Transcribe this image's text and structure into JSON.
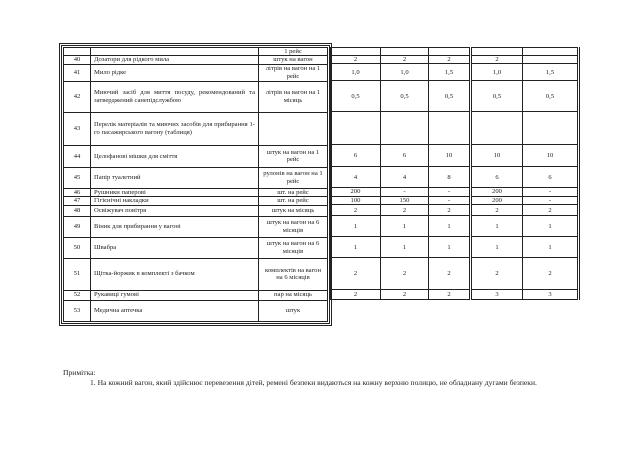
{
  "rows": [
    {
      "num": "",
      "name": "",
      "unit": "1 рейс",
      "values": [
        "",
        "",
        "",
        "",
        ""
      ]
    },
    {
      "num": "40",
      "name": "Дозатори для рідкого мила",
      "unit": "штук на вагон",
      "values": [
        "2",
        "2",
        "2",
        "2",
        ""
      ]
    },
    {
      "num": "41",
      "name": "Мило рідке",
      "unit": "літрів на вагон на 1 рейс",
      "values": [
        "1,0",
        "1,0",
        "1,5",
        "1,0",
        "1,5"
      ]
    },
    {
      "num": "42",
      "name": "Миючий засіб для миття посуду, рекомендований та затверджений санепідслужбою",
      "unit": "літрів на вагон на 1 місяць",
      "values": [
        "0,5",
        "0,5",
        "0,5",
        "0,5",
        "0,5"
      ]
    },
    {
      "num": "43",
      "name": "Перелік матеріалів та миючих засобів для прибирання 1-го пасажирського вагону (таблиця)",
      "unit": "",
      "values": [
        "",
        "",
        "",
        "",
        ""
      ]
    },
    {
      "num": "44",
      "name": "Целофанові мішки для сміття",
      "unit": "штук на вагон на 1 рейс",
      "values": [
        "6",
        "6",
        "10",
        "10",
        "10"
      ]
    },
    {
      "num": "45",
      "name": "Папір туалетний",
      "unit": "рулонів на вагон на 1 рейс",
      "values": [
        "4",
        "4",
        "8",
        "6",
        "6"
      ]
    },
    {
      "num": "46",
      "name": "Рушники паперові",
      "unit": "шт. на рейс",
      "values": [
        "200",
        "-",
        "-",
        "200",
        "-"
      ]
    },
    {
      "num": "47",
      "name": "Гігієнічні накладки",
      "unit": "шт. на рейс",
      "values": [
        "100",
        "150",
        "-",
        "200",
        "-"
      ]
    },
    {
      "num": "48",
      "name": "Освіжувач повітря",
      "unit": "штук на місяць",
      "values": [
        "2",
        "2",
        "2",
        "2",
        "2"
      ]
    },
    {
      "num": "49",
      "name": "Віник для прибирання у вагоні",
      "unit": "штук на вагон на 6 місяців",
      "values": [
        "1",
        "1",
        "1",
        "1",
        "1"
      ]
    },
    {
      "num": "50",
      "name": "Швабра",
      "unit": "штук на вагон на 6 місяців",
      "values": [
        "1",
        "1",
        "1",
        "1",
        "1"
      ]
    },
    {
      "num": "51",
      "name": "Щітка-йоржик в комплекті з бачком",
      "unit": "комплектів на вагон на 6 місяців",
      "values": [
        "2",
        "2",
        "2",
        "2",
        "2"
      ]
    },
    {
      "num": "52",
      "name": "Рукавиці гумові",
      "unit": "пар на місяць",
      "values": [
        "2",
        "2",
        "2",
        "3",
        "3"
      ]
    },
    {
      "num": "53",
      "name": "Медична аптечка",
      "unit": "штук",
      "values": null
    }
  ],
  "note": {
    "title": "Примітка:",
    "text": "1. На кожний вагон, який здійснює перевезення дітей, ремені безпеки видаються на кожну верхню полицю, не обладнану дугами безпеки."
  }
}
